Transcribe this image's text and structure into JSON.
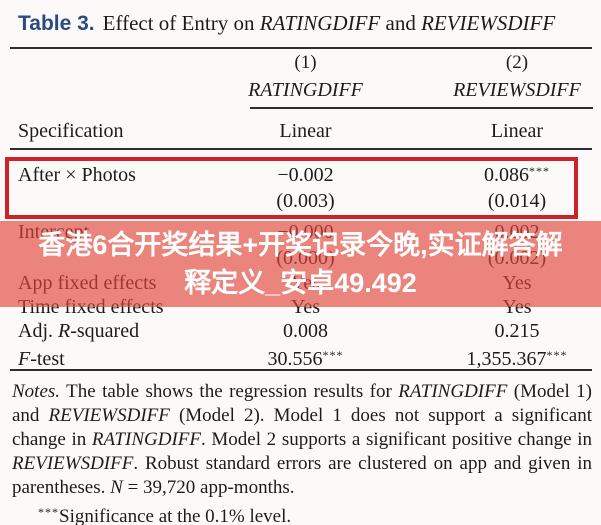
{
  "colors": {
    "accent_blue": "#2a4a80",
    "box_red": "#cd2328",
    "banner_red": "rgba(224,72,61,0.66)",
    "banner_text": "#ffffff"
  },
  "title": {
    "tag": "Table 3.",
    "pre": "Effect of Entry on ",
    "var1": "RATINGDIFF",
    "mid": " and ",
    "var2": "REVIEWSDIFF"
  },
  "columns": {
    "num1": "(1)",
    "var1": "RATINGDIFF",
    "num2": "(2)",
    "var2": "REVIEWSDIFF"
  },
  "spec": {
    "label": "Specification",
    "col1": "Linear",
    "col2": "Linear"
  },
  "rows": {
    "after_photos": {
      "label": "After × Photos",
      "v1": "−0.002",
      "se1": "(0.003)",
      "v2": "0.086",
      "v2_stars": "***",
      "se2": "(0.014)"
    },
    "intercept": {
      "label": "Intercept",
      "v1": "−0.000",
      "se1": "(0.000)",
      "v2": "0.002",
      "se2": "(0.002)"
    },
    "app_fixed_effects": {
      "label": "App fixed effects",
      "v1": "Yes",
      "v2": "Yes"
    },
    "time_fixed_effects": {
      "label": "Time fixed effects",
      "v1": "Yes",
      "v2": "Yes"
    },
    "adj_r_squared": {
      "label_pre": "Adj. ",
      "label_it": "R",
      "label_post": "-squared",
      "v1": "0.008",
      "v2": "0.215"
    },
    "f_test": {
      "label_it": "F",
      "label_post": "-test",
      "v1": "30.556",
      "v1_stars": "***",
      "v2": "1,355.367",
      "v2_stars": "***"
    }
  },
  "overlay_banner": {
    "line1": "香港6合开奖结果+开奖记录今晚,实证解答解",
    "line2": "释定义_安卓49.492"
  },
  "notes": {
    "seg_notes": "Notes.",
    "seg1": " The table shows the regression results for ",
    "seg2": "RATINGDIFF",
    "seg3": " (Model 1) and ",
    "seg4": "REVIEWSDIFF",
    "seg5": " (Model 2). Model 1 does not support a significant change in ",
    "seg6": "RATINGDIFF",
    "seg7": ". Model 2 supports a significant positive change in ",
    "seg8": "REVIEWSDIFF",
    "seg9": ". Robust standard errors are clustered on app and given in parentheses. ",
    "seg10": "N",
    "seg11": " = 39,720 app-months.",
    "sig_stars": "***",
    "sig_text": "Significance at the 0.1% level."
  }
}
